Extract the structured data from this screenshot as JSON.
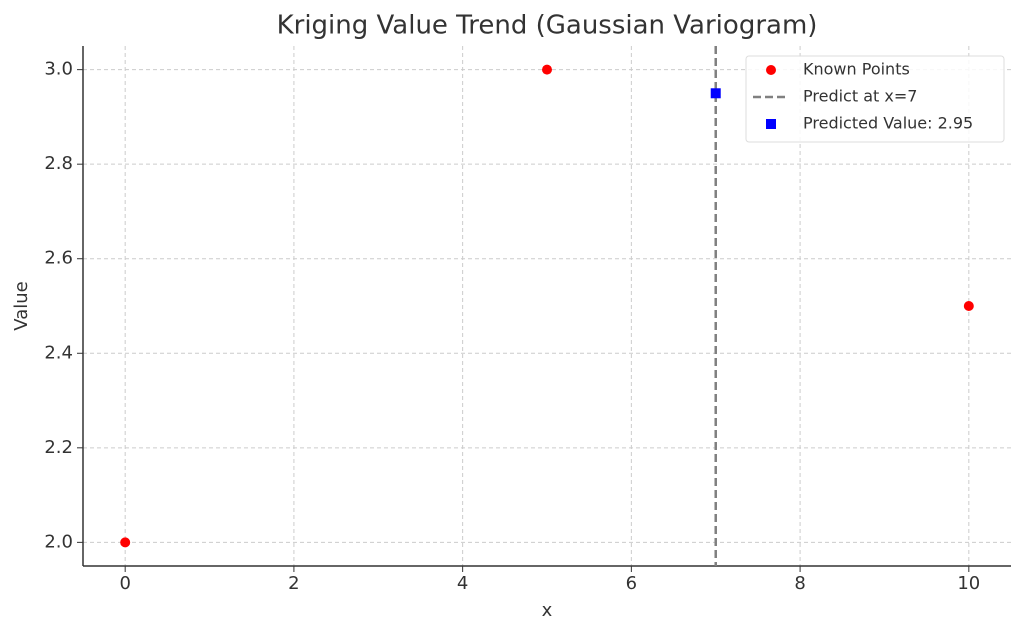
{
  "chart_data": {
    "type": "scatter",
    "title": "Kriging Value Trend (Gaussian Variogram)",
    "x_label": "x",
    "y_label": "Value",
    "series": [
      {
        "name": "Known Points",
        "color": "#ff0000",
        "marker": "circle",
        "x": [
          0,
          5,
          10
        ],
        "values": [
          2,
          3,
          2.5
        ]
      },
      {
        "name": "Predicted Value: 2.95",
        "color": "#0000ff",
        "marker": "square",
        "x": [
          7
        ],
        "values": [
          2.95
        ]
      }
    ],
    "vlines": [
      {
        "name": "Predict at x=7",
        "x": 7,
        "color": "#808080",
        "style": "dashed"
      }
    ],
    "xlim": [
      -0.5,
      10.5
    ],
    "xticks": [
      0,
      2,
      4,
      6,
      8,
      10
    ],
    "ylim": [
      1.95,
      3.05
    ],
    "yticks": [
      {
        "value": 2,
        "label": "2.0"
      },
      {
        "value": 2.2,
        "label": "2.2"
      },
      {
        "value": 2.4,
        "label": "2.4"
      },
      {
        "value": 2.6,
        "label": "2.6"
      },
      {
        "value": 2.8,
        "label": "2.8"
      },
      {
        "value": 3,
        "label": "3.0"
      }
    ],
    "grid": true,
    "legend": "upper right"
  }
}
